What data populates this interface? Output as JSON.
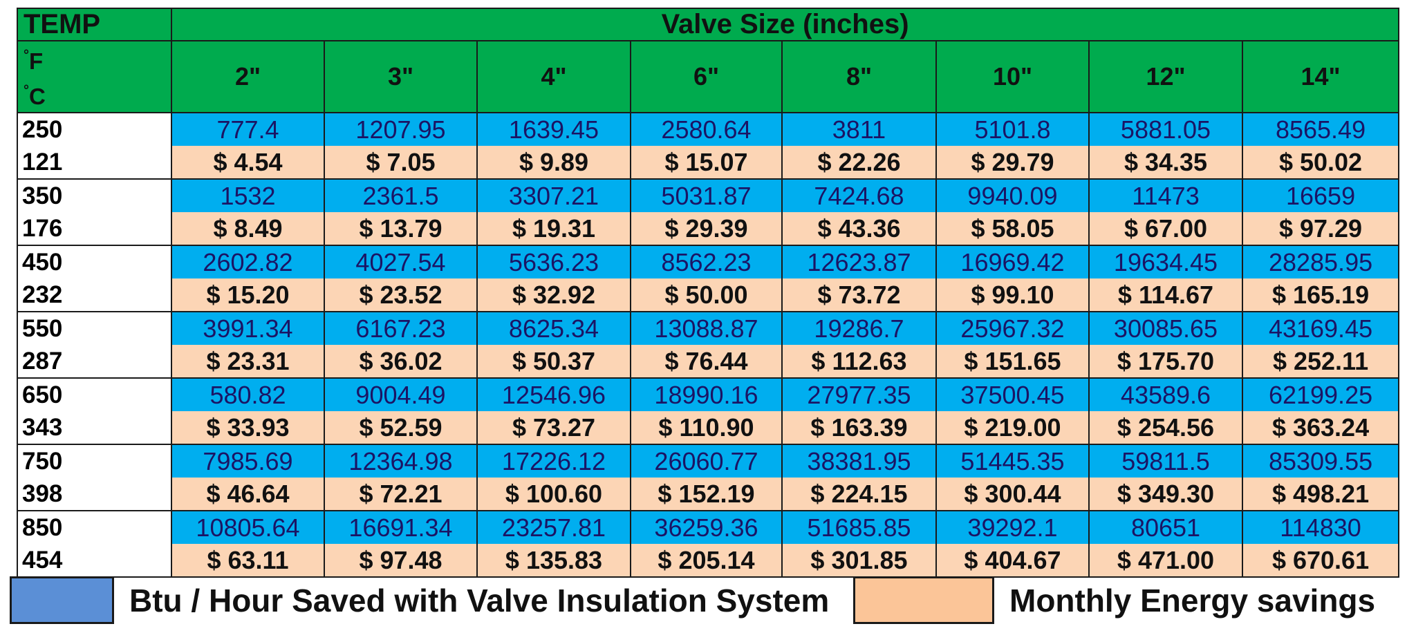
{
  "chart_data": {
    "type": "table",
    "header": {
      "temp_label": "TEMP",
      "size_title": "Valve Size (inches)",
      "unit_f": "F",
      "unit_c": "C"
    },
    "sizes": [
      "2\"",
      "3\"",
      "4\"",
      "6\"",
      "8\"",
      "10\"",
      "12\"",
      "14\""
    ],
    "rows": [
      {
        "temp_f": "250",
        "temp_c": "121",
        "btu": [
          "777.4",
          "1207.95",
          "1639.45",
          "2580.64",
          "3811",
          "5101.8",
          "5881.05",
          "8565.49"
        ],
        "cost": [
          "$ 4.54",
          "$ 7.05",
          "$ 9.89",
          "$ 15.07",
          "$ 22.26",
          "$ 29.79",
          "$ 34.35",
          "$ 50.02"
        ]
      },
      {
        "temp_f": "350",
        "temp_c": "176",
        "btu": [
          "1532",
          "2361.5",
          "3307.21",
          "5031.87",
          "7424.68",
          "9940.09",
          "11473",
          "16659"
        ],
        "cost": [
          "$ 8.49",
          "$ 13.79",
          "$ 19.31",
          "$ 29.39",
          "$ 43.36",
          "$ 58.05",
          "$ 67.00",
          "$ 97.29"
        ]
      },
      {
        "temp_f": "450",
        "temp_c": "232",
        "btu": [
          "2602.82",
          "4027.54",
          "5636.23",
          "8562.23",
          "12623.87",
          "16969.42",
          "19634.45",
          "28285.95"
        ],
        "cost": [
          "$ 15.20",
          "$ 23.52",
          "$ 32.92",
          "$ 50.00",
          "$ 73.72",
          "$ 99.10",
          "$ 114.67",
          "$ 165.19"
        ]
      },
      {
        "temp_f": "550",
        "temp_c": "287",
        "btu": [
          "3991.34",
          "6167.23",
          "8625.34",
          "13088.87",
          "19286.7",
          "25967.32",
          "30085.65",
          "43169.45"
        ],
        "cost": [
          "$ 23.31",
          "$ 36.02",
          "$ 50.37",
          "$ 76.44",
          "$ 112.63",
          "$ 151.65",
          "$ 175.70",
          "$ 252.11"
        ]
      },
      {
        "temp_f": "650",
        "temp_c": "343",
        "btu": [
          "580.82",
          "9004.49",
          "12546.96",
          "18990.16",
          "27977.35",
          "37500.45",
          "43589.6",
          "62199.25"
        ],
        "cost": [
          "$ 33.93",
          "$ 52.59",
          "$ 73.27",
          "$ 110.90",
          "$ 163.39",
          "$ 219.00",
          "$ 254.56",
          "$ 363.24"
        ]
      },
      {
        "temp_f": "750",
        "temp_c": "398",
        "btu": [
          "7985.69",
          "12364.98",
          "17226.12",
          "26060.77",
          "38381.95",
          "51445.35",
          "59811.5",
          "85309.55"
        ],
        "cost": [
          "$ 46.64",
          "$ 72.21",
          "$ 100.60",
          "$ 152.19",
          "$ 224.15",
          "$ 300.44",
          "$ 349.30",
          "$ 498.21"
        ]
      },
      {
        "temp_f": "850",
        "temp_c": "454",
        "btu": [
          "10805.64",
          "16691.34",
          "23257.81",
          "36259.36",
          "51685.85",
          "39292.1",
          "80651",
          "114830"
        ],
        "cost": [
          "$ 63.11",
          "$ 97.48",
          "$ 135.83",
          "$ 205.14",
          "$ 301.85",
          "$ 404.67",
          "$ 471.00",
          "$ 670.61"
        ]
      }
    ],
    "legend": [
      {
        "label": "Btu / Hour Saved with Valve Insulation System",
        "color": "#5b8fd6"
      },
      {
        "label": "Monthly Energy savings",
        "color": "#fbc598"
      }
    ]
  },
  "colors": {
    "header_green": "#00ab4e",
    "btu_cell": "#00aeef",
    "cost_cell": "#fcd5b5"
  }
}
